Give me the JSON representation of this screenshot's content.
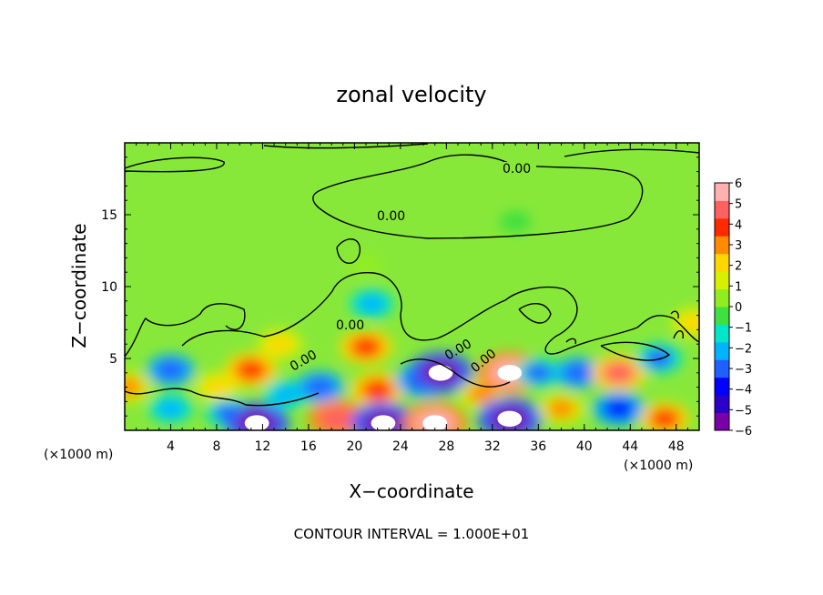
{
  "chart_data": {
    "type": "heatmap",
    "title": "zonal velocity",
    "xlabel": "X−coordinate",
    "ylabel": "Z−coordinate",
    "x_unit_label": "(×1000 m)",
    "xlim": [
      0,
      50
    ],
    "ylim": [
      0,
      20
    ],
    "x_ticks": [
      "4",
      "8",
      "12",
      "16",
      "20",
      "24",
      "28",
      "32",
      "36",
      "40",
      "44",
      "48"
    ],
    "y_ticks": [
      "5",
      "10",
      "15"
    ],
    "colorbar": {
      "ticks": [
        "6",
        "5",
        "4",
        "3",
        "2",
        "1",
        "0",
        "−1",
        "−2",
        "−3",
        "−4",
        "−5",
        "−6"
      ],
      "range": [
        -6,
        6
      ],
      "colors": [
        "#7a00a8",
        "#2b00c8",
        "#0000ff",
        "#2060ff",
        "#00b4ff",
        "#00e6c8",
        "#40e040",
        "#90ee20",
        "#d8f000",
        "#ffd700",
        "#ff8c00",
        "#ff2a00",
        "#ff6060",
        "#ffb0b0"
      ]
    },
    "contour_labels": [
      "0.00",
      "0.00",
      "0.00",
      "0.00",
      "0.00",
      "0.00"
    ],
    "footer": "CONTOUR INTERVAL = 1.000E+01",
    "features": [
      {
        "x": 4,
        "z": 4.2,
        "v": -3.2
      },
      {
        "x": 4,
        "z": 1.5,
        "v": -2.5
      },
      {
        "x": 8,
        "z": 3.0,
        "v": 2.5
      },
      {
        "x": 9,
        "z": 1.2,
        "v": -2.8
      },
      {
        "x": 11,
        "z": 4.2,
        "v": 4.0
      },
      {
        "x": 11.5,
        "z": 0.5,
        "v": -6.0
      },
      {
        "x": 14,
        "z": 2.5,
        "v": -2.5
      },
      {
        "x": 17,
        "z": 3.0,
        "v": -3.3
      },
      {
        "x": 18.5,
        "z": 0.8,
        "v": 5.0
      },
      {
        "x": 21,
        "z": 5.8,
        "v": 4.0
      },
      {
        "x": 21.5,
        "z": 8.8,
        "v": -2.5
      },
      {
        "x": 22,
        "z": 2.8,
        "v": 4.2
      },
      {
        "x": 22.5,
        "z": 0.5,
        "v": -6.0
      },
      {
        "x": 26,
        "z": 3.5,
        "v": -4.5
      },
      {
        "x": 27.5,
        "z": 4.0,
        "v": -6.0
      },
      {
        "x": 27,
        "z": 0.5,
        "v": 6.0
      },
      {
        "x": 31,
        "z": 2.5,
        "v": 2.8
      },
      {
        "x": 33.5,
        "z": 4.0,
        "v": 6.0
      },
      {
        "x": 33.5,
        "z": 0.8,
        "v": -6.0
      },
      {
        "x": 36,
        "z": 4.0,
        "v": -3.0
      },
      {
        "x": 38,
        "z": 1.5,
        "v": 3.0
      },
      {
        "x": 39.5,
        "z": 4.0,
        "v": -3.2
      },
      {
        "x": 43,
        "z": 4.0,
        "v": 4.5
      },
      {
        "x": 43,
        "z": 1.5,
        "v": -4.0
      },
      {
        "x": 46.5,
        "z": 5.0,
        "v": -3.0
      },
      {
        "x": 47,
        "z": 0.8,
        "v": 3.5
      },
      {
        "x": 49.5,
        "z": 7.5,
        "v": 2.5
      },
      {
        "x": 0.3,
        "z": 3.0,
        "v": 3.0
      },
      {
        "x": 13.5,
        "z": 6.0,
        "v": 2.5
      },
      {
        "x": 21,
        "z": 11.5,
        "v": 0.6
      },
      {
        "x": 34,
        "z": 14.5,
        "v": -0.4
      }
    ]
  }
}
